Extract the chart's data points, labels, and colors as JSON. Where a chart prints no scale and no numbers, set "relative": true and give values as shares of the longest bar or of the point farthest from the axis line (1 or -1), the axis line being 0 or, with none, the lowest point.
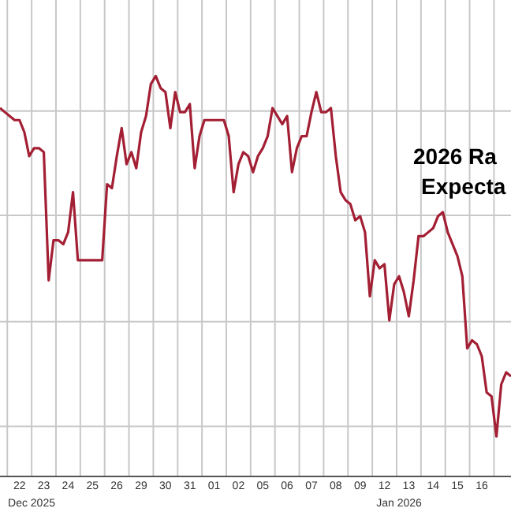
{
  "chart_data": {
    "type": "line",
    "title": "2026 Ra\nExpecta",
    "relative": true,
    "grid": true,
    "marker": "none",
    "line_style": "solid",
    "annotations": [
      "Dec 2025",
      "Jan 2026"
    ],
    "categories": [
      null,
      null,
      null,
      null,
      "22",
      null,
      null,
      null,
      null,
      "23",
      null,
      null,
      null,
      null,
      "24",
      null,
      null,
      null,
      null,
      "25",
      null,
      null,
      null,
      null,
      "26",
      null,
      null,
      null,
      null,
      "29",
      null,
      null,
      null,
      null,
      "30",
      null,
      null,
      null,
      null,
      "31",
      null,
      null,
      null,
      null,
      "01",
      null,
      null,
      null,
      null,
      "02",
      null,
      null,
      null,
      null,
      "05",
      null,
      null,
      null,
      null,
      "06",
      null,
      null,
      null,
      null,
      "07",
      null,
      null,
      null,
      null,
      "08",
      null,
      null,
      null,
      null,
      "09",
      null,
      null,
      null,
      null,
      "12",
      null,
      null,
      null,
      null,
      "13",
      null,
      null,
      null,
      null,
      "14",
      null,
      null,
      null,
      null,
      "15",
      null,
      null,
      null,
      null,
      "16",
      null,
      null,
      null,
      null,
      null,
      null
    ],
    "series": [
      {
        "color": "#a31f34",
        "values": [
          0.92,
          0.91,
          0.9,
          0.89,
          0.89,
          0.86,
          0.8,
          0.82,
          0.82,
          0.81,
          0.49,
          0.59,
          0.59,
          0.58,
          0.61,
          0.71,
          0.54,
          0.54,
          0.54,
          0.54,
          0.54,
          0.54,
          0.73,
          0.72,
          0.8,
          0.87,
          0.78,
          0.81,
          0.77,
          0.86,
          0.9,
          0.98,
          1.0,
          0.97,
          0.96,
          0.87,
          0.96,
          0.91,
          0.91,
          0.93,
          0.77,
          0.85,
          0.89,
          0.89,
          0.89,
          0.89,
          0.89,
          0.85,
          0.71,
          0.78,
          0.81,
          0.8,
          0.76,
          0.8,
          0.82,
          0.85,
          0.92,
          0.9,
          0.88,
          0.9,
          0.76,
          0.82,
          0.85,
          0.85,
          0.91,
          0.96,
          0.91,
          0.91,
          0.92,
          0.8,
          0.71,
          0.69,
          0.68,
          0.64,
          0.65,
          0.61,
          0.45,
          0.54,
          0.52,
          0.53,
          0.39,
          0.48,
          0.5,
          0.46,
          0.4,
          0.49,
          0.6,
          0.6,
          0.61,
          0.62,
          0.65,
          0.66,
          0.61,
          0.58,
          0.55,
          0.5,
          0.32,
          0.34,
          0.33,
          0.3,
          0.21,
          0.2,
          0.1,
          0.23,
          0.26,
          0.25
        ]
      }
    ]
  }
}
